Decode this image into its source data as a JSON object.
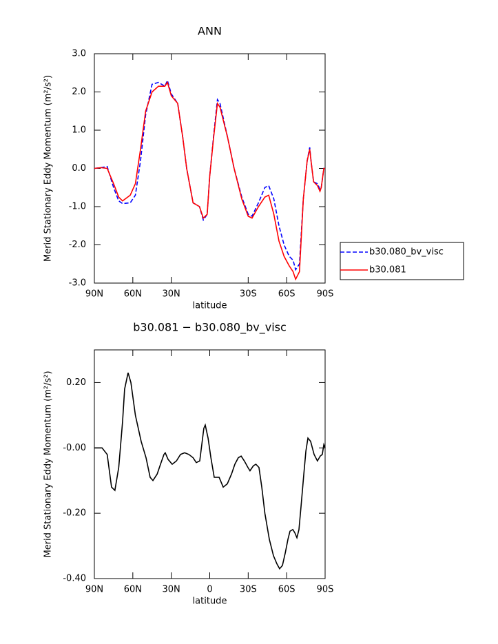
{
  "chart_data": [
    {
      "type": "line",
      "title": "ANN",
      "xlabel": "latitude",
      "ylabel": "Merid Stationary Eddy Momentum (m²/s²)",
      "x": [
        90,
        85,
        80,
        75,
        71,
        68,
        62,
        58,
        54,
        50,
        45,
        40,
        35,
        33,
        30,
        25,
        21,
        18,
        13,
        8,
        5,
        2,
        0,
        -3,
        -6,
        -8,
        -14,
        -19,
        -25,
        -30,
        -33,
        -38,
        -43,
        -46,
        -50,
        -54,
        -58,
        -62,
        -65,
        -67,
        -70,
        -73,
        -76,
        -78,
        -79,
        -81,
        -84,
        -86,
        -87,
        -89,
        -90
      ],
      "series": [
        {
          "name": "b30.080_bv_visc",
          "color": "#0000ff",
          "dashed": true,
          "values": [
            0,
            0.02,
            0.05,
            -0.5,
            -0.85,
            -0.92,
            -0.9,
            -0.7,
            0.2,
            1.4,
            2.2,
            2.25,
            2.15,
            2.3,
            1.95,
            1.7,
            0.8,
            0,
            -0.9,
            -1.0,
            -1.35,
            -1.2,
            -0.2,
            0.85,
            1.8,
            1.7,
            0.8,
            0,
            -0.75,
            -1.2,
            -1.25,
            -0.9,
            -0.5,
            -0.45,
            -0.8,
            -1.5,
            -2.0,
            -2.3,
            -2.4,
            -2.65,
            -2.5,
            -0.8,
            0.2,
            0.55,
            0.2,
            -0.35,
            -0.4,
            -0.55,
            -0.5,
            0,
            0
          ]
        },
        {
          "name": "b30.081",
          "color": "#ff0000",
          "dashed": false,
          "values": [
            0,
            0.02,
            0,
            -0.4,
            -0.75,
            -0.85,
            -0.7,
            -0.4,
            0.5,
            1.5,
            2.0,
            2.15,
            2.15,
            2.25,
            1.9,
            1.7,
            0.8,
            0,
            -0.9,
            -1.0,
            -1.3,
            -1.2,
            -0.2,
            0.8,
            1.7,
            1.6,
            0.8,
            0,
            -0.8,
            -1.25,
            -1.3,
            -1.0,
            -0.75,
            -0.7,
            -1.2,
            -1.9,
            -2.3,
            -2.55,
            -2.7,
            -2.9,
            -2.7,
            -0.8,
            0.2,
            0.5,
            0.2,
            -0.35,
            -0.45,
            -0.6,
            -0.5,
            0,
            0
          ]
        }
      ],
      "xlim": [
        90,
        -90
      ],
      "xticks": [
        {
          "value": 90,
          "label": "90N"
        },
        {
          "value": 60,
          "label": "60N"
        },
        {
          "value": 30,
          "label": "30N"
        },
        {
          "value": -30,
          "label": "30S"
        },
        {
          "value": -60,
          "label": "60S"
        },
        {
          "value": -90,
          "label": "90S"
        }
      ],
      "ylim": [
        -3,
        3
      ],
      "yticks": [
        {
          "value": 3,
          "label": "3.0"
        },
        {
          "value": 2,
          "label": "2.0"
        },
        {
          "value": 1,
          "label": "1.0"
        },
        {
          "value": 0,
          "label": "0.0"
        },
        {
          "value": -1,
          "label": "-1.0"
        },
        {
          "value": -2,
          "label": "-2.0"
        },
        {
          "value": -3,
          "label": "-3.0"
        }
      ],
      "legend": "right"
    },
    {
      "type": "line",
      "title": "b30.081 − b30.080_bv_visc",
      "xlabel": "latitude",
      "ylabel": "Merid Stationary Eddy Momentum (m²/s²)",
      "x": [
        90,
        84,
        80,
        76.6,
        74,
        71,
        68,
        66.4,
        63.7,
        61.5,
        58,
        53.5,
        49.7,
        46.5,
        44.3,
        41,
        38.4,
        35.7,
        34.7,
        32.5,
        29.3,
        26,
        22.8,
        19.6,
        16.3,
        13,
        10.5,
        7.8,
        6.2,
        4.6,
        3.5,
        1.3,
        -0.9,
        -3.5,
        -7.3,
        -10.5,
        -13.7,
        -17,
        -19.6,
        -22.3,
        -24.5,
        -27,
        -29.8,
        -31.4,
        -34,
        -36,
        -38.4,
        -40.6,
        -43,
        -46.5,
        -49.7,
        -52.4,
        -54.5,
        -56.7,
        -59,
        -61,
        -62.6,
        -64.8,
        -66.4,
        -68,
        -69.6,
        -71.2,
        -73.4,
        -75,
        -76.6,
        -78.7,
        -81.4,
        -84,
        -86.2,
        -87.8,
        -89,
        -90
      ],
      "series": [
        {
          "name": "b30.081 − b30.080_bv_visc",
          "color": "#000000",
          "dashed": false,
          "values": [
            0,
            0,
            -0.02,
            -0.12,
            -0.13,
            -0.06,
            0.08,
            0.18,
            0.23,
            0.2,
            0.1,
            0.02,
            -0.03,
            -0.09,
            -0.1,
            -0.08,
            -0.05,
            -0.02,
            -0.015,
            -0.035,
            -0.05,
            -0.04,
            -0.02,
            -0.015,
            -0.02,
            -0.03,
            -0.045,
            -0.04,
            0.01,
            0.06,
            0.07,
            0.03,
            -0.03,
            -0.09,
            -0.09,
            -0.12,
            -0.11,
            -0.08,
            -0.05,
            -0.03,
            -0.025,
            -0.04,
            -0.06,
            -0.07,
            -0.055,
            -0.05,
            -0.06,
            -0.12,
            -0.2,
            -0.28,
            -0.33,
            -0.355,
            -0.37,
            -0.36,
            -0.32,
            -0.28,
            -0.255,
            -0.25,
            -0.26,
            -0.275,
            -0.25,
            -0.18,
            -0.08,
            -0.01,
            0.03,
            0.02,
            -0.02,
            -0.04,
            -0.025,
            -0.02,
            0.01,
            0
          ]
        }
      ],
      "xlim": [
        90,
        -90
      ],
      "xticks": [
        {
          "value": 90,
          "label": "90N"
        },
        {
          "value": 60,
          "label": "60N"
        },
        {
          "value": 30,
          "label": "30N"
        },
        0,
        {
          "value": -30,
          "label": "30S"
        },
        {
          "value": -60,
          "label": "60S"
        },
        {
          "value": -90,
          "label": "90S"
        }
      ],
      "ylim": [
        -0.4,
        0.3
      ],
      "yticks": [
        {
          "value": 0.2,
          "label": "0.20"
        },
        {
          "value": 0,
          "label": "-0.00"
        },
        {
          "value": -0.2,
          "label": "-0.20"
        },
        {
          "value": -0.4,
          "label": "-0.40"
        }
      ]
    }
  ]
}
